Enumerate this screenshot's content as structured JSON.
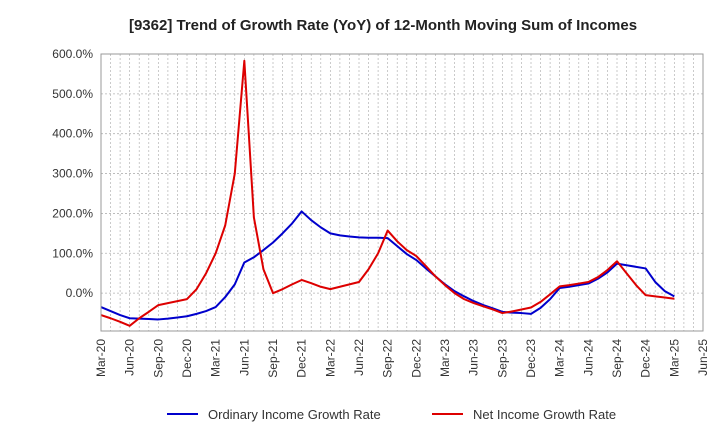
{
  "chart_data": {
    "type": "line",
    "title": "[9362]  Trend of Growth Rate (YoY) of 12-Month Moving Sum of Incomes",
    "xlabel": "",
    "ylabel": "",
    "x_tick_labels": [
      "Mar-20",
      "Jun-20",
      "Sep-20",
      "Dec-20",
      "Mar-21",
      "Jun-21",
      "Sep-21",
      "Dec-21",
      "Mar-22",
      "Jun-22",
      "Sep-22",
      "Dec-22",
      "Mar-23",
      "Jun-23",
      "Sep-23",
      "Dec-23",
      "Mar-24",
      "Jun-24",
      "Sep-24",
      "Dec-24",
      "Mar-25",
      "Jun-25"
    ],
    "y_tick_labels": [
      "600.0%",
      "500.0%",
      "400.0%",
      "300.0%",
      "200.0%",
      "100.0%",
      "0.0%"
    ],
    "y_ticks": [
      600,
      500,
      400,
      300,
      200,
      100,
      0
    ],
    "ylim": [
      -95,
      600
    ],
    "x_range": [
      "Mar-20",
      "Jun-25"
    ],
    "grid": true,
    "legend_position": "bottom",
    "series": [
      {
        "name": "Ordinary Income Growth Rate",
        "color": "#0000cc",
        "x": [
          "Mar-20",
          "Apr-20",
          "May-20",
          "Jun-20",
          "Jul-20",
          "Aug-20",
          "Sep-20",
          "Oct-20",
          "Nov-20",
          "Dec-20",
          "Jan-21",
          "Feb-21",
          "Mar-21",
          "Apr-21",
          "May-21",
          "Jun-21",
          "Jul-21",
          "Aug-21",
          "Sep-21",
          "Oct-21",
          "Nov-21",
          "Dec-21",
          "Jan-22",
          "Feb-22",
          "Mar-22",
          "Apr-22",
          "May-22",
          "Jun-22",
          "Jul-22",
          "Aug-22",
          "Sep-22",
          "Oct-22",
          "Nov-22",
          "Dec-22",
          "Jan-23",
          "Feb-23",
          "Mar-23",
          "Apr-23",
          "May-23",
          "Jun-23",
          "Jul-23",
          "Aug-23",
          "Sep-23",
          "Oct-23",
          "Nov-23",
          "Dec-23",
          "Jan-24",
          "Feb-24",
          "Mar-24",
          "Apr-24",
          "May-24",
          "Jun-24",
          "Jul-24",
          "Aug-24",
          "Sep-24",
          "Oct-24",
          "Nov-24",
          "Dec-24",
          "Jan-25",
          "Feb-25",
          "Mar-25"
        ],
        "values": [
          -35,
          -45,
          -55,
          -63,
          -64,
          -65,
          -66,
          -64,
          -61,
          -58,
          -52,
          -45,
          -35,
          -10,
          22,
          77,
          90,
          108,
          127,
          150,
          175,
          205,
          183,
          165,
          150,
          145,
          142,
          140,
          139,
          139,
          138,
          118,
          98,
          83,
          62,
          42,
          22,
          5,
          -8,
          -20,
          -30,
          -38,
          -47,
          -49,
          -50,
          -52,
          -37,
          -15,
          13,
          16,
          20,
          24,
          36,
          52,
          74,
          70,
          66,
          62,
          28,
          5,
          -8
        ]
      },
      {
        "name": "Net Income Growth Rate",
        "color": "#dd0000",
        "x": [
          "Mar-20",
          "Apr-20",
          "May-20",
          "Jun-20",
          "Jul-20",
          "Aug-20",
          "Sep-20",
          "Oct-20",
          "Nov-20",
          "Dec-20",
          "Jan-21",
          "Feb-21",
          "Mar-21",
          "Apr-21",
          "May-21",
          "Jun-21",
          "Jul-21",
          "Aug-21",
          "Sep-21",
          "Oct-21",
          "Nov-21",
          "Dec-21",
          "Jan-22",
          "Feb-22",
          "Mar-22",
          "Apr-22",
          "May-22",
          "Jun-22",
          "Jul-22",
          "Aug-22",
          "Sep-22",
          "Oct-22",
          "Nov-22",
          "Dec-22",
          "Jan-23",
          "Feb-23",
          "Mar-23",
          "Apr-23",
          "May-23",
          "Jun-23",
          "Jul-23",
          "Aug-23",
          "Sep-23",
          "Oct-23",
          "Nov-23",
          "Dec-23",
          "Jan-24",
          "Feb-24",
          "Mar-24",
          "Apr-24",
          "May-24",
          "Jun-24",
          "Jul-24",
          "Aug-24",
          "Sep-24",
          "Oct-24",
          "Nov-24",
          "Dec-24",
          "Jan-25",
          "Feb-25",
          "Mar-25"
        ],
        "values": [
          -55,
          -63,
          -72,
          -82,
          -63,
          -47,
          -30,
          -25,
          -20,
          -15,
          10,
          50,
          100,
          170,
          300,
          583,
          190,
          60,
          0,
          10,
          22,
          33,
          25,
          16,
          10,
          16,
          22,
          28,
          60,
          100,
          157,
          130,
          108,
          93,
          68,
          42,
          20,
          0,
          -15,
          -25,
          -33,
          -41,
          -50,
          -46,
          -41,
          -36,
          -22,
          -3,
          17,
          20,
          24,
          28,
          40,
          58,
          80,
          50,
          20,
          -5,
          -8,
          -11,
          -14
        ]
      }
    ]
  }
}
